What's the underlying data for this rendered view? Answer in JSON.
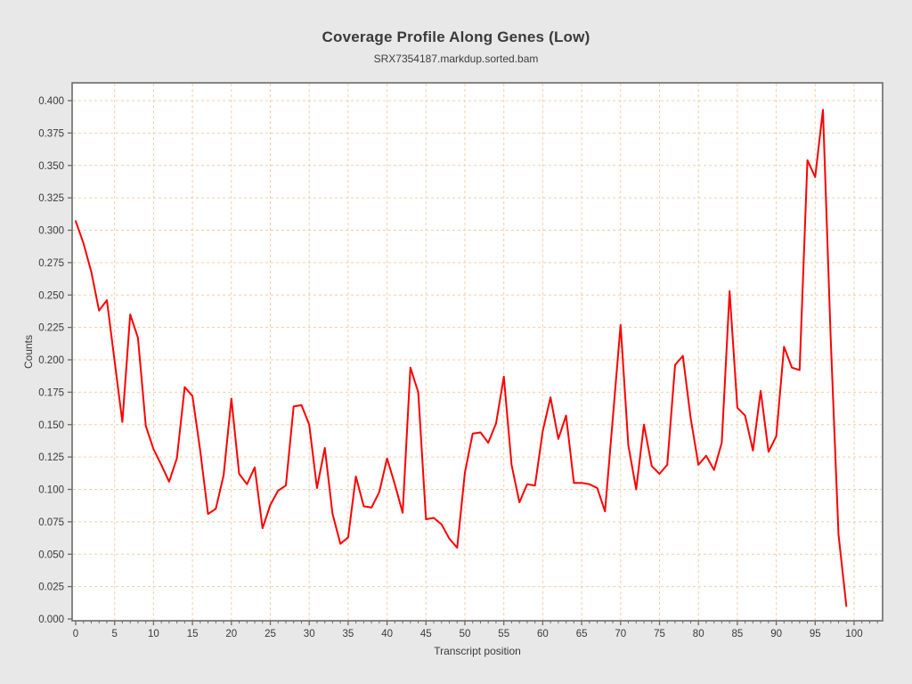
{
  "page": {
    "background": "#e8e8e8"
  },
  "header": {
    "title": "Coverage Profile Along Genes (Low)",
    "subtitle": "SRX7354187.markdup.sorted.bam"
  },
  "chart_data": {
    "type": "line",
    "title": "Coverage Profile Along Genes (Low)",
    "subtitle": "SRX7354187.markdup.sorted.bam",
    "xlabel": "Transcript position",
    "ylabel": "Counts",
    "x_range": [
      0,
      99
    ],
    "x_step": 1,
    "values": [
      0.307,
      0.29,
      0.268,
      0.238,
      0.246,
      0.199,
      0.152,
      0.235,
      0.217,
      0.149,
      0.131,
      0.119,
      0.106,
      0.124,
      0.179,
      0.172,
      0.13,
      0.081,
      0.085,
      0.111,
      0.17,
      0.112,
      0.104,
      0.117,
      0.07,
      0.088,
      0.099,
      0.103,
      0.164,
      0.165,
      0.15,
      0.101,
      0.132,
      0.081,
      0.058,
      0.063,
      0.11,
      0.087,
      0.086,
      0.098,
      0.124,
      0.104,
      0.082,
      0.194,
      0.175,
      0.077,
      0.078,
      0.073,
      0.062,
      0.055,
      0.113,
      0.143,
      0.144,
      0.136,
      0.151,
      0.187,
      0.119,
      0.09,
      0.104,
      0.103,
      0.145,
      0.171,
      0.139,
      0.157,
      0.105,
      0.105,
      0.104,
      0.101,
      0.083,
      0.155,
      0.227,
      0.134,
      0.1,
      0.15,
      0.118,
      0.112,
      0.119,
      0.196,
      0.203,
      0.155,
      0.119,
      0.126,
      0.115,
      0.136,
      0.253,
      0.163,
      0.157,
      0.13,
      0.176,
      0.129,
      0.141,
      0.21,
      0.194,
      0.192,
      0.354,
      0.341,
      0.393,
      0.215,
      0.065,
      0.01
    ],
    "x_tick_labels": [
      "0",
      "5",
      "10",
      "15",
      "20",
      "25",
      "30",
      "35",
      "40",
      "45",
      "50",
      "55",
      "60",
      "65",
      "70",
      "75",
      "80",
      "85",
      "90",
      "95",
      "100"
    ],
    "y_tick_labels": [
      "0.000",
      "0.025",
      "0.050",
      "0.075",
      "0.100",
      "0.125",
      "0.150",
      "0.175",
      "0.200",
      "0.225",
      "0.250",
      "0.275",
      "0.300",
      "0.325",
      "0.350",
      "0.375",
      "0.400"
    ],
    "xlim": [
      -0.5,
      103.6
    ],
    "ylim": [
      0.0,
      0.4135
    ],
    "grid": true,
    "legend": false,
    "colors": {
      "series": "#ff0000",
      "grid": "#f5cda6",
      "plot_background": "#ffffff",
      "page_background": "#e8e8e8",
      "axis_border": "#6a6a6a",
      "tick_text": "#3a3a3a"
    }
  }
}
